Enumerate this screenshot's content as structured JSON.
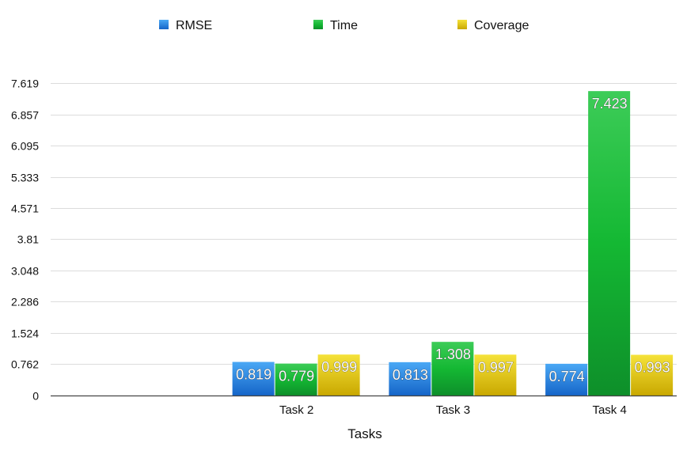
{
  "chart_data": {
    "type": "bar",
    "title": "",
    "xlabel": "Tasks",
    "ylabel": "",
    "categories": [
      "",
      "Task 2",
      "Task 3",
      "Task 4"
    ],
    "series": [
      {
        "name": "RMSE",
        "values": [
          null,
          0.819,
          0.813,
          0.774
        ],
        "value_labels": [
          "",
          "0.819",
          "0.813",
          "0.774"
        ],
        "color": "#1f7fe0"
      },
      {
        "name": "Time",
        "values": [
          null,
          0.779,
          1.308,
          7.423
        ],
        "value_labels": [
          "",
          "0.779",
          "1.308",
          "7.423"
        ],
        "color": "#1fb83a"
      },
      {
        "name": "Coverage",
        "values": [
          null,
          0.999,
          0.997,
          0.993
        ],
        "value_labels": [
          "",
          "0.999",
          "0.997",
          "0.993"
        ],
        "color": "#e3c400"
      }
    ],
    "ylim": [
      0,
      7.619
    ],
    "yticks": [
      0,
      0.762,
      1.524,
      2.286,
      3.048,
      3.81,
      4.571,
      5.333,
      6.095,
      6.857,
      7.619
    ],
    "ytick_labels": [
      "0",
      "0.762",
      "1.524",
      "2.286",
      "3.048",
      "3.81",
      "4.571",
      "5.333",
      "6.095",
      "6.857",
      "7.619"
    ],
    "grid": true,
    "legend_position": "top"
  }
}
